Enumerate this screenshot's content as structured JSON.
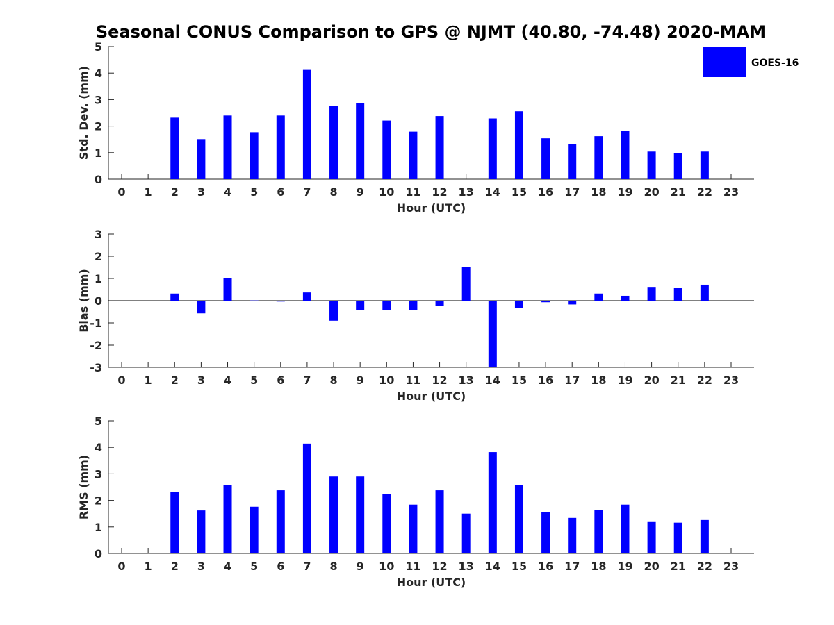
{
  "chart_data": [
    {
      "type": "bar",
      "title": "Seasonal CONUS Comparison to GPS @ NJMT (40.80, -74.48) 2020-MAM",
      "xlabel": "Hour (UTC)",
      "ylabel": "Std. Dev. (mm)",
      "ylim": [
        0,
        5
      ],
      "yticks": [
        "0",
        "1",
        "2",
        "3",
        "4",
        "5"
      ],
      "categories": [
        "0",
        "1",
        "2",
        "3",
        "4",
        "5",
        "6",
        "7",
        "8",
        "9",
        "10",
        "11",
        "12",
        "13",
        "14",
        "15",
        "16",
        "17",
        "18",
        "19",
        "20",
        "21",
        "22",
        "23"
      ],
      "series": [
        {
          "name": "GOES-16",
          "color": "#0000ff",
          "values": [
            null,
            null,
            2.32,
            1.51,
            2.4,
            1.77,
            2.4,
            4.12,
            2.77,
            2.87,
            2.21,
            1.79,
            2.38,
            null,
            2.29,
            2.56,
            1.54,
            1.33,
            1.62,
            1.82,
            1.04,
            0.99,
            1.04,
            null
          ]
        }
      ],
      "legend": "top-right",
      "grid": false
    },
    {
      "type": "bar",
      "xlabel": "Hour (UTC)",
      "ylabel": "Bias (mm)",
      "ylim": [
        -3,
        3
      ],
      "yticks": [
        "-3",
        "-2",
        "-1",
        "0",
        "1",
        "2",
        "3"
      ],
      "zero_line": true,
      "categories": [
        "0",
        "1",
        "2",
        "3",
        "4",
        "5",
        "6",
        "7",
        "8",
        "9",
        "10",
        "11",
        "12",
        "13",
        "14",
        "15",
        "16",
        "17",
        "18",
        "19",
        "20",
        "21",
        "22",
        "23"
      ],
      "series": [
        {
          "name": "GOES-16",
          "color": "#0000ff",
          "values": [
            null,
            null,
            0.32,
            -0.57,
            1.0,
            0.01,
            -0.04,
            0.37,
            -0.9,
            -0.43,
            -0.42,
            -0.42,
            -0.23,
            1.5,
            -3.0,
            -0.32,
            -0.07,
            -0.17,
            0.32,
            0.22,
            0.62,
            0.57,
            0.72,
            null
          ]
        }
      ],
      "grid": false
    },
    {
      "type": "bar",
      "xlabel": "Hour (UTC)",
      "ylabel": "RMS (mm)",
      "ylim": [
        0,
        5
      ],
      "yticks": [
        "0",
        "1",
        "2",
        "3",
        "4",
        "5"
      ],
      "categories": [
        "0",
        "1",
        "2",
        "3",
        "4",
        "5",
        "6",
        "7",
        "8",
        "9",
        "10",
        "11",
        "12",
        "13",
        "14",
        "15",
        "16",
        "17",
        "18",
        "19",
        "20",
        "21",
        "22",
        "23"
      ],
      "series": [
        {
          "name": "GOES-16",
          "color": "#0000ff",
          "values": [
            null,
            null,
            2.33,
            1.62,
            2.59,
            1.76,
            2.38,
            4.14,
            2.9,
            2.9,
            2.25,
            1.84,
            2.38,
            1.5,
            3.82,
            2.57,
            1.55,
            1.34,
            1.63,
            1.84,
            1.21,
            1.16,
            1.26,
            null
          ]
        }
      ],
      "grid": false
    }
  ]
}
